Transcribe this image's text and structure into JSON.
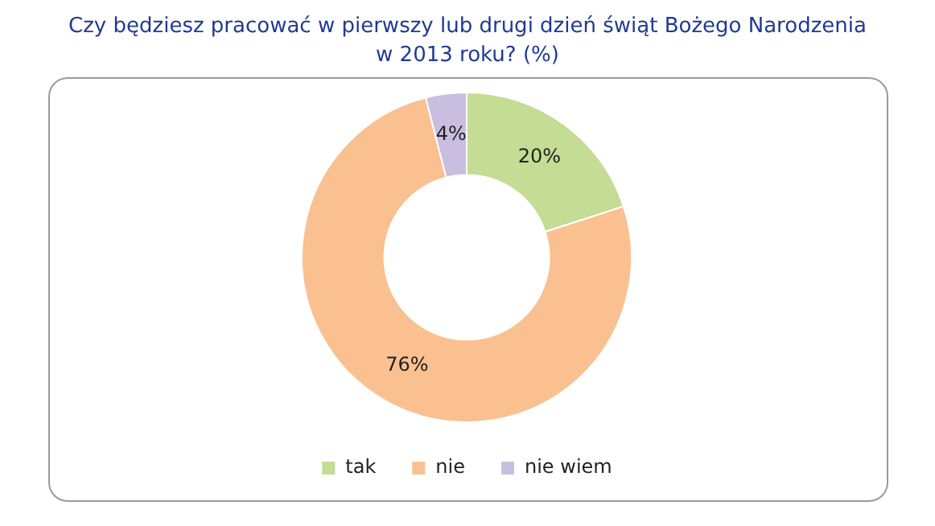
{
  "chart_data": {
    "type": "donut",
    "title": "Czy będziesz pracować w pierwszy lub drugi dzień świąt Bożego Narodzenia\nw 2013 roku? (%)",
    "categories": [
      "tak",
      "nie",
      "nie wiem"
    ],
    "values": [
      20,
      76,
      4
    ],
    "colors": [
      "#c4dc94",
      "#fac08f",
      "#c9bee0"
    ],
    "value_labels": [
      "20%",
      "76%",
      "4%"
    ],
    "legend": "bottom"
  }
}
